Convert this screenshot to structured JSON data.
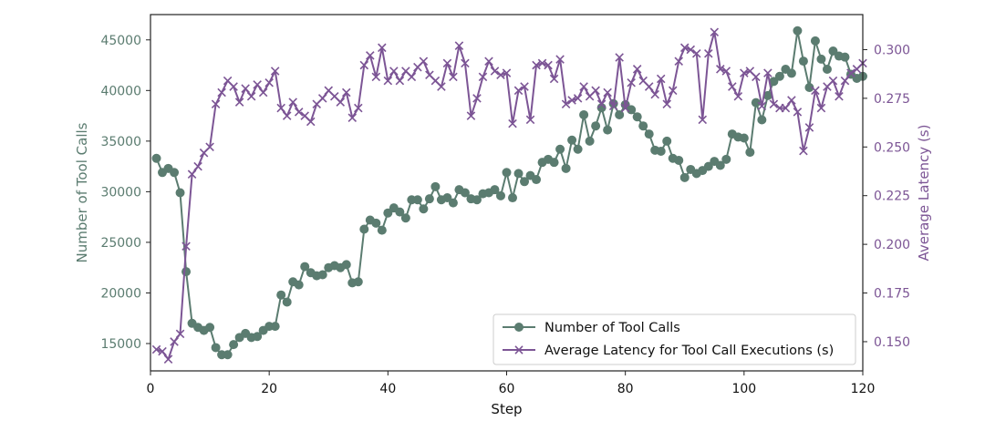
{
  "chart_data": {
    "type": "line",
    "title": "",
    "xlabel": "Step",
    "ylabel_left": "Number of Tool Calls",
    "ylabel_right": "Average Latency (s)",
    "xlim": [
      0,
      120
    ],
    "ylim_left": [
      12300,
      47500
    ],
    "ylim_right": [
      0.135,
      0.318
    ],
    "x_ticks": [
      0,
      20,
      40,
      60,
      80,
      100,
      120
    ],
    "x_tick_labels": [
      "0",
      "20",
      "40",
      "60",
      "80",
      "100",
      "120"
    ],
    "y_left_ticks": [
      15000,
      20000,
      25000,
      30000,
      35000,
      40000,
      45000
    ],
    "y_left_tick_labels": [
      "15000",
      "20000",
      "25000",
      "30000",
      "35000",
      "40000",
      "45000"
    ],
    "y_right_ticks": [
      0.15,
      0.175,
      0.2,
      0.225,
      0.25,
      0.275,
      0.3
    ],
    "y_right_tick_labels": [
      "0.150",
      "0.175",
      "0.200",
      "0.225",
      "0.250",
      "0.275",
      "0.300"
    ],
    "grid": false,
    "legend_position": "bottom-right",
    "colors": {
      "tool_calls": "#5b7c70",
      "latency": "#7c5595",
      "left_axis_text": "#5b7c70",
      "right_axis_text": "#7c5595"
    },
    "x": [
      1,
      2,
      3,
      4,
      5,
      6,
      7,
      8,
      9,
      10,
      11,
      12,
      13,
      14,
      15,
      16,
      17,
      18,
      19,
      20,
      21,
      22,
      23,
      24,
      25,
      26,
      27,
      28,
      29,
      30,
      31,
      32,
      33,
      34,
      35,
      36,
      37,
      38,
      39,
      40,
      41,
      42,
      43,
      44,
      45,
      46,
      47,
      48,
      49,
      50,
      51,
      52,
      53,
      54,
      55,
      56,
      57,
      58,
      59,
      60,
      61,
      62,
      63,
      64,
      65,
      66,
      67,
      68,
      69,
      70,
      71,
      72,
      73,
      74,
      75,
      76,
      77,
      78,
      79,
      80,
      81,
      82,
      83,
      84,
      85,
      86,
      87,
      88,
      89,
      90,
      91,
      92,
      93,
      94,
      95,
      96,
      97,
      98,
      99,
      100,
      101,
      102,
      103,
      104,
      105,
      106,
      107,
      108,
      109,
      110,
      111,
      112,
      113,
      114,
      115,
      116,
      117,
      118,
      119,
      120
    ],
    "series": [
      {
        "name": "Number of Tool Calls",
        "axis": "left",
        "marker": "circle",
        "values": [
          33300,
          31900,
          32300,
          31900,
          29900,
          22100,
          17000,
          16600,
          16300,
          16600,
          14600,
          13900,
          13900,
          14900,
          15600,
          16000,
          15600,
          15700,
          16300,
          16700,
          16700,
          19800,
          19100,
          21100,
          20800,
          22600,
          22000,
          21700,
          21800,
          22500,
          22700,
          22500,
          22800,
          21000,
          21100,
          26300,
          27200,
          26900,
          26200,
          27900,
          28400,
          28000,
          27400,
          29200,
          29200,
          28300,
          29300,
          30500,
          29200,
          29400,
          28900,
          30200,
          29900,
          29300,
          29200,
          29800,
          29900,
          30200,
          29600,
          31900,
          29400,
          31800,
          31000,
          31600,
          31200,
          32900,
          33200,
          32900,
          34200,
          32300,
          35100,
          34200,
          37600,
          35000,
          36500,
          38300,
          36100,
          38700,
          37600,
          38600,
          38100,
          37400,
          36500,
          35700,
          34100,
          34000,
          35000,
          33300,
          33100,
          31400,
          32200,
          31800,
          32100,
          32500,
          33000,
          32600,
          33200,
          35700,
          35400,
          35300,
          33900,
          38800,
          37100,
          39500,
          40900,
          41400,
          42100,
          41700,
          45900,
          42900,
          40300,
          44900,
          43100,
          42100,
          43900,
          43400,
          43300,
          41600,
          41200,
          41400
        ]
      },
      {
        "name": "Average Latency for Tool Call Executions (s)",
        "axis": "right",
        "marker": "x",
        "values": [
          0.146,
          0.145,
          0.141,
          0.15,
          0.154,
          0.199,
          0.236,
          0.24,
          0.247,
          0.25,
          0.272,
          0.278,
          0.284,
          0.281,
          0.273,
          0.28,
          0.276,
          0.282,
          0.278,
          0.283,
          0.289,
          0.27,
          0.266,
          0.273,
          0.268,
          0.266,
          0.263,
          0.272,
          0.275,
          0.279,
          0.276,
          0.273,
          0.278,
          0.265,
          0.27,
          0.292,
          0.297,
          0.286,
          0.301,
          0.284,
          0.289,
          0.284,
          0.289,
          0.286,
          0.291,
          0.294,
          0.287,
          0.284,
          0.281,
          0.293,
          0.286,
          0.302,
          0.293,
          0.266,
          0.275,
          0.286,
          0.294,
          0.289,
          0.287,
          0.288,
          0.262,
          0.279,
          0.281,
          0.264,
          0.292,
          0.293,
          0.292,
          0.285,
          0.295,
          0.272,
          0.274,
          0.275,
          0.281,
          0.276,
          0.279,
          0.272,
          0.278,
          0.271,
          0.296,
          0.27,
          0.283,
          0.29,
          0.284,
          0.281,
          0.277,
          0.285,
          0.272,
          0.279,
          0.294,
          0.301,
          0.3,
          0.298,
          0.264,
          0.298,
          0.309,
          0.29,
          0.289,
          0.281,
          0.276,
          0.288,
          0.289,
          0.286,
          0.271,
          0.288,
          0.272,
          0.27,
          0.27,
          0.274,
          0.268,
          0.248,
          0.26,
          0.279,
          0.27,
          0.281,
          0.284,
          0.276,
          0.284,
          0.288,
          0.29,
          0.293
        ]
      }
    ]
  }
}
